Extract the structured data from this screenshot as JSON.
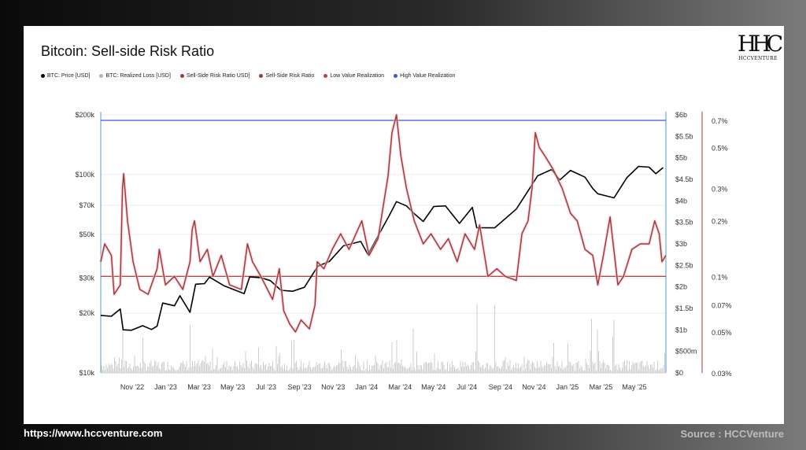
{
  "title": "Bitcoin: Sell-side Risk Ratio",
  "logo": {
    "mark": "HHC",
    "text": "HCCVENTURE"
  },
  "footer": {
    "url": "https://www.hccventure.com",
    "source": "Source : HCCVenture"
  },
  "legend": [
    {
      "label": "BTC: Price [USD]",
      "color": "#000000"
    },
    {
      "label": "BTC: Realized Loss [USD]",
      "color": "#b5b5b5"
    },
    {
      "label": "Sell-Side Risk Ratio  USD]",
      "color": "#a03a3a"
    },
    {
      "label": "Sell-Side Risk Ratio",
      "color": "#a03a3a"
    },
    {
      "label": "Low Value Realization",
      "color": "#b04a4a"
    },
    {
      "label": "High Value Realization",
      "color": "#3a5bd0"
    }
  ],
  "chart_data": {
    "type": "line",
    "x_ticks": [
      "Nov '22",
      "Jan '23",
      "Mar '23",
      "May '23",
      "Jul '23",
      "Sep '23",
      "Nov '23",
      "Jan '24",
      "Mar '24",
      "May '24",
      "Jul '24",
      "Sep '24",
      "Nov '24",
      "Jan '25",
      "Mar '25",
      "May '25"
    ],
    "x_range": [
      "2022-10-01",
      "2025-07-10"
    ],
    "y_left": {
      "label": "BTC: Price [USD]",
      "scale": "log",
      "range": [
        10000,
        200000
      ],
      "ticks": [
        {
          "value": 200000,
          "label": "$200k"
        },
        {
          "value": 100000,
          "label": "$100k"
        },
        {
          "value": 70000,
          "label": "$70k"
        },
        {
          "value": 50000,
          "label": "$50k"
        },
        {
          "value": 30000,
          "label": "$30k"
        },
        {
          "value": 20000,
          "label": "$20k"
        },
        {
          "value": 10000,
          "label": "$10k"
        }
      ]
    },
    "y_right": {
      "label": "BTC: Realized Loss [USD]",
      "scale": "linear",
      "range": [
        0,
        6000000000
      ],
      "ticks": [
        {
          "value": 6000000000,
          "label": "$6b"
        },
        {
          "value": 5500000000,
          "label": "$5.5b"
        },
        {
          "value": 5000000000,
          "label": "$5b"
        },
        {
          "value": 4500000000,
          "label": "$4.5b"
        },
        {
          "value": 4000000000,
          "label": "$4b"
        },
        {
          "value": 3500000000,
          "label": "$3.5b"
        },
        {
          "value": 3000000000,
          "label": "$3b"
        },
        {
          "value": 2500000000,
          "label": "$2.5b"
        },
        {
          "value": 2000000000,
          "label": "$2b"
        },
        {
          "value": 1500000000,
          "label": "$1.5b"
        },
        {
          "value": 1000000000,
          "label": "$1b"
        },
        {
          "value": 500000000,
          "label": "$500m"
        },
        {
          "value": 0,
          "label": "$0"
        }
      ]
    },
    "y_ratio": {
      "label": "Sell-Side Risk Ratio",
      "scale": "log",
      "range": [
        0.03,
        0.75
      ],
      "ticks": [
        {
          "value": 0.7,
          "label": "0.7%"
        },
        {
          "value": 0.5,
          "label": "0.5%"
        },
        {
          "value": 0.3,
          "label": "0.3%"
        },
        {
          "value": 0.2,
          "label": "0.2%"
        },
        {
          "value": 0.1,
          "label": "0.1%"
        },
        {
          "value": 0.07,
          "label": "0.07%"
        },
        {
          "value": 0.05,
          "label": "0.05%"
        },
        {
          "value": 0.03,
          "label": "0.03%"
        }
      ]
    },
    "thresholds": [
      {
        "name": "High Value Realization",
        "value": 0.7,
        "color": "#3a5bd0"
      },
      {
        "name": "Low Value Realization",
        "value": 0.1,
        "color": "#b04a4a"
      }
    ],
    "series": [
      {
        "name": "BTC: Price [USD]",
        "color": "#000000",
        "axis": "left",
        "points": [
          [
            "2022-10-01",
            19500
          ],
          [
            "2022-10-20",
            19300
          ],
          [
            "2022-11-05",
            21000
          ],
          [
            "2022-11-10",
            16500
          ],
          [
            "2022-11-25",
            16400
          ],
          [
            "2022-12-15",
            17300
          ],
          [
            "2022-12-31",
            16550
          ],
          [
            "2023-01-10",
            17200
          ],
          [
            "2023-01-20",
            22500
          ],
          [
            "2023-02-10",
            21800
          ],
          [
            "2023-02-20",
            24500
          ],
          [
            "2023-03-10",
            20200
          ],
          [
            "2023-03-20",
            28000
          ],
          [
            "2023-04-05",
            28200
          ],
          [
            "2023-04-14",
            30400
          ],
          [
            "2023-05-10",
            27500
          ],
          [
            "2023-06-15",
            25100
          ],
          [
            "2023-06-25",
            30500
          ],
          [
            "2023-07-15",
            30200
          ],
          [
            "2023-08-01",
            29200
          ],
          [
            "2023-08-20",
            26100
          ],
          [
            "2023-09-10",
            25800
          ],
          [
            "2023-10-01",
            27000
          ],
          [
            "2023-10-25",
            34500
          ],
          [
            "2023-11-15",
            36500
          ],
          [
            "2023-12-10",
            43700
          ],
          [
            "2024-01-10",
            46000
          ],
          [
            "2024-01-23",
            39500
          ],
          [
            "2024-02-15",
            52000
          ],
          [
            "2024-03-01",
            62000
          ],
          [
            "2024-03-14",
            73000
          ],
          [
            "2024-04-01",
            69500
          ],
          [
            "2024-04-15",
            63500
          ],
          [
            "2024-05-01",
            58000
          ],
          [
            "2024-05-20",
            69000
          ],
          [
            "2024-06-10",
            69500
          ],
          [
            "2024-07-05",
            56700
          ],
          [
            "2024-07-28",
            68300
          ],
          [
            "2024-08-05",
            54000
          ],
          [
            "2024-09-06",
            53900
          ],
          [
            "2024-10-15",
            67000
          ],
          [
            "2024-11-11",
            88000
          ],
          [
            "2024-11-22",
            98500
          ],
          [
            "2024-12-17",
            106000
          ],
          [
            "2025-01-01",
            94000
          ],
          [
            "2025-01-20",
            105000
          ],
          [
            "2025-02-15",
            97000
          ],
          [
            "2025-03-01",
            85000
          ],
          [
            "2025-03-10",
            80000
          ],
          [
            "2025-04-08",
            76300
          ],
          [
            "2025-05-01",
            96500
          ],
          [
            "2025-05-22",
            110000
          ],
          [
            "2025-06-10",
            109000
          ],
          [
            "2025-06-22",
            101000
          ],
          [
            "2025-07-05",
            108500
          ]
        ]
      },
      {
        "name": "Sell-Side Risk Ratio",
        "color": "#a03a3a",
        "axis": "ratio",
        "points": [
          [
            "2022-10-01",
            0.12
          ],
          [
            "2022-10-08",
            0.15
          ],
          [
            "2022-10-20",
            0.13
          ],
          [
            "2022-10-25",
            0.08
          ],
          [
            "2022-11-05",
            0.09
          ],
          [
            "2022-11-09",
            0.3
          ],
          [
            "2022-11-11",
            0.36
          ],
          [
            "2022-11-18",
            0.2
          ],
          [
            "2022-11-28",
            0.12
          ],
          [
            "2022-12-10",
            0.085
          ],
          [
            "2022-12-25",
            0.08
          ],
          [
            "2023-01-10",
            0.11
          ],
          [
            "2023-01-14",
            0.14
          ],
          [
            "2023-01-25",
            0.09
          ],
          [
            "2023-02-10",
            0.1
          ],
          [
            "2023-02-25",
            0.085
          ],
          [
            "2023-03-10",
            0.12
          ],
          [
            "2023-03-14",
            0.18
          ],
          [
            "2023-03-18",
            0.2
          ],
          [
            "2023-03-28",
            0.12
          ],
          [
            "2023-04-10",
            0.14
          ],
          [
            "2023-04-20",
            0.1
          ],
          [
            "2023-05-05",
            0.13
          ],
          [
            "2023-05-20",
            0.09
          ],
          [
            "2023-06-10",
            0.085
          ],
          [
            "2023-06-21",
            0.15
          ],
          [
            "2023-06-30",
            0.12
          ],
          [
            "2023-07-15",
            0.1
          ],
          [
            "2023-08-05",
            0.075
          ],
          [
            "2023-08-17",
            0.11
          ],
          [
            "2023-08-25",
            0.065
          ],
          [
            "2023-09-05",
            0.055
          ],
          [
            "2023-09-15",
            0.05
          ],
          [
            "2023-09-25",
            0.058
          ],
          [
            "2023-10-10",
            0.052
          ],
          [
            "2023-10-20",
            0.07
          ],
          [
            "2023-10-24",
            0.12
          ],
          [
            "2023-11-05",
            0.11
          ],
          [
            "2023-11-20",
            0.14
          ],
          [
            "2023-12-05",
            0.17
          ],
          [
            "2023-12-20",
            0.14
          ],
          [
            "2024-01-05",
            0.18
          ],
          [
            "2024-01-12",
            0.2
          ],
          [
            "2024-01-25",
            0.13
          ],
          [
            "2024-02-10",
            0.16
          ],
          [
            "2024-02-28",
            0.35
          ],
          [
            "2024-03-06",
            0.6
          ],
          [
            "2024-03-14",
            0.75
          ],
          [
            "2024-03-22",
            0.45
          ],
          [
            "2024-04-01",
            0.3
          ],
          [
            "2024-04-15",
            0.2
          ],
          [
            "2024-05-01",
            0.15
          ],
          [
            "2024-05-15",
            0.17
          ],
          [
            "2024-06-01",
            0.14
          ],
          [
            "2024-06-15",
            0.16
          ],
          [
            "2024-07-01",
            0.12
          ],
          [
            "2024-07-15",
            0.17
          ],
          [
            "2024-08-01",
            0.14
          ],
          [
            "2024-08-10",
            0.19
          ],
          [
            "2024-08-25",
            0.1
          ],
          [
            "2024-09-10",
            0.11
          ],
          [
            "2024-09-25",
            0.1
          ],
          [
            "2024-10-15",
            0.095
          ],
          [
            "2024-10-25",
            0.17
          ],
          [
            "2024-11-05",
            0.2
          ],
          [
            "2024-11-12",
            0.3
          ],
          [
            "2024-11-18",
            0.6
          ],
          [
            "2024-11-25",
            0.5
          ],
          [
            "2024-12-05",
            0.45
          ],
          [
            "2024-12-20",
            0.38
          ],
          [
            "2025-01-05",
            0.3
          ],
          [
            "2025-01-20",
            0.22
          ],
          [
            "2025-02-01",
            0.2
          ],
          [
            "2025-02-15",
            0.14
          ],
          [
            "2025-03-01",
            0.13
          ],
          [
            "2025-03-10",
            0.09
          ],
          [
            "2025-03-20",
            0.13
          ],
          [
            "2025-04-01",
            0.21
          ],
          [
            "2025-04-15",
            0.09
          ],
          [
            "2025-04-25",
            0.1
          ],
          [
            "2025-05-10",
            0.14
          ],
          [
            "2025-05-25",
            0.15
          ],
          [
            "2025-06-10",
            0.15
          ],
          [
            "2025-06-20",
            0.2
          ],
          [
            "2025-06-28",
            0.17
          ],
          [
            "2025-07-03",
            0.12
          ],
          [
            "2025-07-10",
            0.13
          ]
        ]
      }
    ]
  }
}
